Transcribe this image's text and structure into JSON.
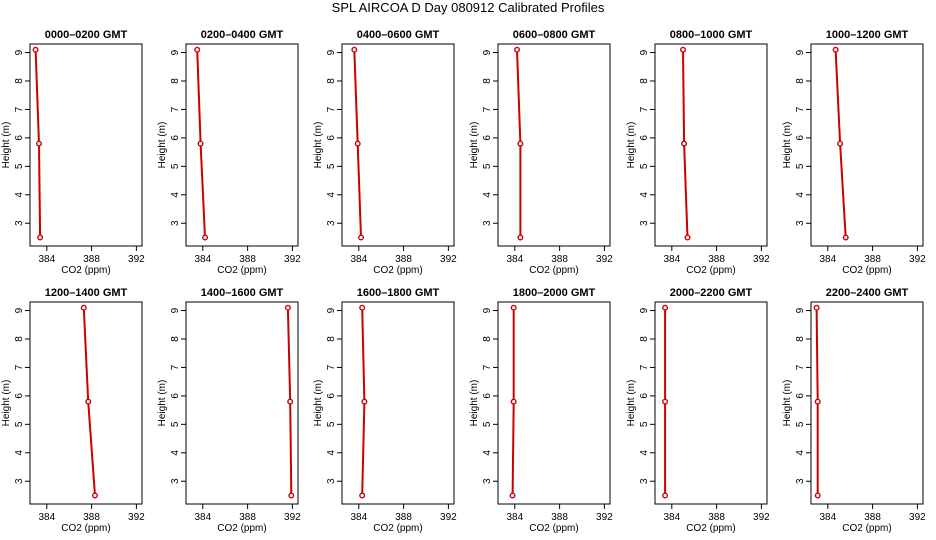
{
  "figure": {
    "title": "SPL AIRCOA D  Day 080912  Calibrated Profiles",
    "line_color": "#cc0000",
    "marker_color": "#cc0000"
  },
  "chart_data": [
    {
      "type": "line",
      "title": "0000–0200 GMT",
      "xlabel": "CO2 (ppm)",
      "ylabel": "Height (m)",
      "xlim": [
        382.5,
        392.5
      ],
      "ylim": [
        2.2,
        9.3
      ],
      "x_ticks": [
        384,
        388,
        392
      ],
      "y_ticks": [
        3,
        4,
        5,
        6,
        7,
        8,
        9
      ],
      "series": [
        {
          "x": [
            383.0,
            383.3,
            383.4
          ],
          "y": [
            9.1,
            5.8,
            2.5
          ]
        }
      ]
    },
    {
      "type": "line",
      "title": "0200–0400 GMT",
      "xlabel": "CO2 (ppm)",
      "ylabel": "Height (m)",
      "xlim": [
        382.5,
        392.5
      ],
      "ylim": [
        2.2,
        9.3
      ],
      "x_ticks": [
        384,
        388,
        392
      ],
      "y_ticks": [
        3,
        4,
        5,
        6,
        7,
        8,
        9
      ],
      "series": [
        {
          "x": [
            383.5,
            383.8,
            384.2
          ],
          "y": [
            9.1,
            5.8,
            2.5
          ]
        }
      ]
    },
    {
      "type": "line",
      "title": "0400–0600 GMT",
      "xlabel": "CO2 (ppm)",
      "ylabel": "Height (m)",
      "xlim": [
        382.5,
        392.5
      ],
      "ylim": [
        2.2,
        9.3
      ],
      "x_ticks": [
        384,
        388,
        392
      ],
      "y_ticks": [
        3,
        4,
        5,
        6,
        7,
        8,
        9
      ],
      "series": [
        {
          "x": [
            383.6,
            383.9,
            384.2
          ],
          "y": [
            9.1,
            5.8,
            2.5
          ]
        }
      ]
    },
    {
      "type": "line",
      "title": "0600–0800 GMT",
      "xlabel": "CO2 (ppm)",
      "ylabel": "Height (m)",
      "xlim": [
        382.5,
        392.5
      ],
      "ylim": [
        2.2,
        9.3
      ],
      "x_ticks": [
        384,
        388,
        392
      ],
      "y_ticks": [
        3,
        4,
        5,
        6,
        7,
        8,
        9
      ],
      "series": [
        {
          "x": [
            384.2,
            384.5,
            384.5
          ],
          "y": [
            9.1,
            5.8,
            2.5
          ]
        }
      ]
    },
    {
      "type": "line",
      "title": "0800–1000 GMT",
      "xlabel": "CO2 (ppm)",
      "ylabel": "Height (m)",
      "xlim": [
        382.5,
        392.5
      ],
      "ylim": [
        2.2,
        9.3
      ],
      "x_ticks": [
        384,
        388,
        392
      ],
      "y_ticks": [
        3,
        4,
        5,
        6,
        7,
        8,
        9
      ],
      "series": [
        {
          "x": [
            385.0,
            385.1,
            385.4
          ],
          "y": [
            9.1,
            5.8,
            2.5
          ]
        }
      ]
    },
    {
      "type": "line",
      "title": "1000–1200 GMT",
      "xlabel": "CO2 (ppm)",
      "ylabel": "Height (m)",
      "xlim": [
        382.5,
        392.5
      ],
      "ylim": [
        2.2,
        9.3
      ],
      "x_ticks": [
        384,
        388,
        392
      ],
      "y_ticks": [
        3,
        4,
        5,
        6,
        7,
        8,
        9
      ],
      "series": [
        {
          "x": [
            384.7,
            385.1,
            385.6
          ],
          "y": [
            9.1,
            5.8,
            2.5
          ]
        }
      ]
    },
    {
      "type": "line",
      "title": "1200–1400 GMT",
      "xlabel": "CO2 (ppm)",
      "ylabel": "Height (m)",
      "xlim": [
        382.5,
        392.5
      ],
      "ylim": [
        2.2,
        9.3
      ],
      "x_ticks": [
        384,
        388,
        392
      ],
      "y_ticks": [
        3,
        4,
        5,
        6,
        7,
        8,
        9
      ],
      "series": [
        {
          "x": [
            387.3,
            387.7,
            388.3
          ],
          "y": [
            9.1,
            5.8,
            2.5
          ]
        }
      ]
    },
    {
      "type": "line",
      "title": "1400–1600 GMT",
      "xlabel": "CO2 (ppm)",
      "ylabel": "Height (m)",
      "xlim": [
        382.5,
        392.5
      ],
      "ylim": [
        2.2,
        9.3
      ],
      "x_ticks": [
        384,
        388,
        392
      ],
      "y_ticks": [
        3,
        4,
        5,
        6,
        7,
        8,
        9
      ],
      "series": [
        {
          "x": [
            391.6,
            391.8,
            391.9
          ],
          "y": [
            9.1,
            5.8,
            2.5
          ]
        }
      ]
    },
    {
      "type": "line",
      "title": "1600–1800 GMT",
      "xlabel": "CO2 (ppm)",
      "ylabel": "Height (m)",
      "xlim": [
        382.5,
        392.5
      ],
      "ylim": [
        2.2,
        9.3
      ],
      "x_ticks": [
        384,
        388,
        392
      ],
      "y_ticks": [
        3,
        4,
        5,
        6,
        7,
        8,
        9
      ],
      "series": [
        {
          "x": [
            384.3,
            384.5,
            384.3
          ],
          "y": [
            9.1,
            5.8,
            2.5
          ]
        }
      ]
    },
    {
      "type": "line",
      "title": "1800–2000 GMT",
      "xlabel": "CO2 (ppm)",
      "ylabel": "Height (m)",
      "xlim": [
        382.5,
        392.5
      ],
      "ylim": [
        2.2,
        9.3
      ],
      "x_ticks": [
        384,
        388,
        392
      ],
      "y_ticks": [
        3,
        4,
        5,
        6,
        7,
        8,
        9
      ],
      "series": [
        {
          "x": [
            383.9,
            383.9,
            383.8
          ],
          "y": [
            9.1,
            5.8,
            2.5
          ]
        }
      ]
    },
    {
      "type": "line",
      "title": "2000–2200 GMT",
      "xlabel": "CO2 (ppm)",
      "ylabel": "Height (m)",
      "xlim": [
        382.5,
        392.5
      ],
      "ylim": [
        2.2,
        9.3
      ],
      "x_ticks": [
        384,
        388,
        392
      ],
      "y_ticks": [
        3,
        4,
        5,
        6,
        7,
        8,
        9
      ],
      "series": [
        {
          "x": [
            383.4,
            383.4,
            383.4
          ],
          "y": [
            9.1,
            5.8,
            2.5
          ]
        }
      ]
    },
    {
      "type": "line",
      "title": "2200–2400 GMT",
      "xlabel": "CO2 (ppm)",
      "ylabel": "Height (m)",
      "xlim": [
        382.5,
        392.5
      ],
      "ylim": [
        2.2,
        9.3
      ],
      "x_ticks": [
        384,
        388,
        392
      ],
      "y_ticks": [
        3,
        4,
        5,
        6,
        7,
        8,
        9
      ],
      "series": [
        {
          "x": [
            383.0,
            383.1,
            383.1
          ],
          "y": [
            9.1,
            5.8,
            2.5
          ]
        }
      ]
    }
  ]
}
